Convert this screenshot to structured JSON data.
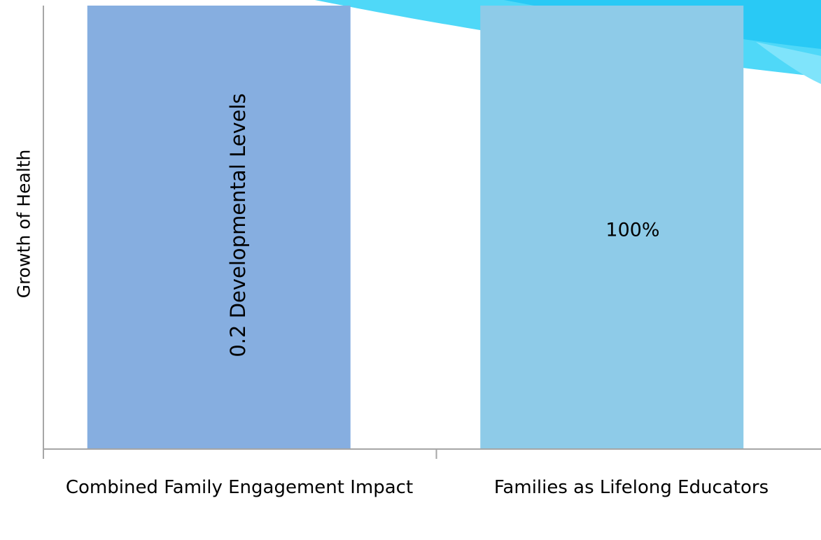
{
  "chart_data": {
    "type": "bar",
    "title": "",
    "xlabel": "",
    "ylabel": "Growth of Health",
    "categories": [
      "Combined Family Engagement Impact",
      "Families as Lifelong Educators"
    ],
    "values": [
      1,
      1
    ],
    "data_labels": [
      "0.2 Developmental Levels",
      "100%"
    ],
    "ylim": [
      0,
      1
    ],
    "grid": false,
    "legend": "none",
    "colors": [
      "#86aee0",
      "#8ecbe8"
    ]
  },
  "decoration": {
    "swoosh_colors": [
      "#4fd8f8",
      "#29c9f5",
      "#7fe4fb"
    ]
  }
}
